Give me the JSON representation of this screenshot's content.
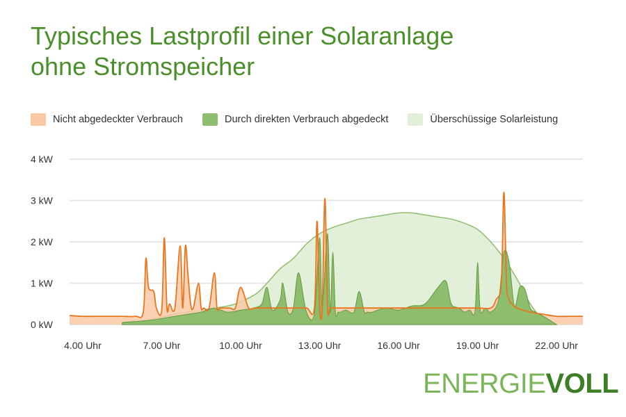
{
  "title": {
    "line1": "Typisches Lastprofil einer Solaranlage",
    "line2": "ohne Stromspeicher"
  },
  "legend": [
    {
      "label": "Nicht abgedeckter Verbrauch",
      "color": "#f9c9a6"
    },
    {
      "label": "Durch direkten Verbrauch abgedeckt",
      "color": "#8ebd6e"
    },
    {
      "label": "Überschüssige Solarleistung",
      "color": "#e2efd9"
    }
  ],
  "logo": {
    "part1": "ENERGIE",
    "part2": "VOLL"
  },
  "colors": {
    "consumption_line": "#e8761e",
    "consumption_fill": "#f9c9a6",
    "direct_fill": "#8ebd6e",
    "solar_fill": "#e2efd9",
    "solar_line": "#8ebd6e",
    "title": "#4a8f2a"
  },
  "chart_data": {
    "type": "area",
    "title": "Typisches Lastprofil einer Solaranlage ohne Stromspeicher",
    "xlim": [
      3.5,
      23
    ],
    "ylim": [
      0,
      4
    ],
    "x_ticks": [
      {
        "value": 4,
        "label": "4.00 Uhr"
      },
      {
        "value": 7,
        "label": "7.00 Uhr"
      },
      {
        "value": 10,
        "label": "10.00 Uhr"
      },
      {
        "value": 13,
        "label": "13.00 Uhr"
      },
      {
        "value": 16,
        "label": "16.00 Uhr"
      },
      {
        "value": 19,
        "label": "19.00 Uhr"
      },
      {
        "value": 22,
        "label": "22.00 Uhr"
      }
    ],
    "y_ticks": [
      {
        "value": 0,
        "label": "0 kW"
      },
      {
        "value": 1,
        "label": "1 kW"
      },
      {
        "value": 2,
        "label": "2 kW"
      },
      {
        "value": 3,
        "label": "3 kW"
      },
      {
        "value": 4,
        "label": "4 kW"
      }
    ],
    "grid": true,
    "legend_position": "top",
    "series": [
      {
        "name": "Überschüssige Solarleistung",
        "x": [
          5.5,
          6.5,
          7.5,
          8.5,
          9.5,
          10.0,
          10.6,
          11.0,
          11.5,
          12.0,
          12.5,
          13.0,
          13.5,
          14.0,
          14.5,
          15.0,
          15.5,
          16.0,
          16.5,
          17.0,
          17.5,
          18.0,
          18.5,
          19.0,
          19.5,
          20.0,
          20.5,
          21.0,
          21.5,
          22.0
        ],
        "y": [
          0.05,
          0.12,
          0.25,
          0.35,
          0.45,
          0.55,
          0.75,
          1.0,
          1.35,
          1.6,
          1.95,
          2.2,
          2.35,
          2.45,
          2.55,
          2.6,
          2.65,
          2.7,
          2.7,
          2.65,
          2.6,
          2.55,
          2.45,
          2.3,
          2.0,
          1.6,
          1.1,
          0.5,
          0.12,
          0.0
        ]
      },
      {
        "name": "Durch direkten Verbrauch abgedeckt",
        "x": [
          5.5,
          6.5,
          7.5,
          8.0,
          8.5,
          9.0,
          9.5,
          10.0,
          10.5,
          10.8,
          11.0,
          11.2,
          11.5,
          11.6,
          11.8,
          12.0,
          12.2,
          12.5,
          12.8,
          13.0,
          13.1,
          13.3,
          13.4,
          13.5,
          13.6,
          13.7,
          13.8,
          14.0,
          14.3,
          14.5,
          14.7,
          14.8,
          15.0,
          15.5,
          16.0,
          16.5,
          17.0,
          17.5,
          17.8,
          18.0,
          18.3,
          18.5,
          18.7,
          18.9,
          19.0,
          19.1,
          19.3,
          19.5,
          19.8,
          20.0,
          20.2,
          20.4,
          20.6,
          20.8,
          21.0,
          21.2,
          21.5,
          22.0
        ],
        "y": [
          0.05,
          0.1,
          0.2,
          0.25,
          0.3,
          0.4,
          0.3,
          0.35,
          0.4,
          0.5,
          0.9,
          0.35,
          0.6,
          1.0,
          0.3,
          0.4,
          1.25,
          0.3,
          0.25,
          2.1,
          0.4,
          2.2,
          0.3,
          1.75,
          0.3,
          0.3,
          0.3,
          0.35,
          0.3,
          0.8,
          0.3,
          0.3,
          0.3,
          0.4,
          0.35,
          0.45,
          0.5,
          0.9,
          1.05,
          0.5,
          0.4,
          0.3,
          0.35,
          0.3,
          1.5,
          0.35,
          0.4,
          0.3,
          0.6,
          1.75,
          1.5,
          0.45,
          0.9,
          0.85,
          0.4,
          0.3,
          0.2,
          0.0
        ]
      },
      {
        "name": "Nicht abgedeckter Verbrauch",
        "x": [
          3.5,
          4.0,
          5.0,
          5.5,
          6.0,
          6.3,
          6.4,
          6.5,
          6.7,
          6.8,
          7.0,
          7.1,
          7.2,
          7.3,
          7.5,
          7.7,
          7.8,
          7.9,
          8.0,
          8.1,
          8.2,
          8.4,
          8.5,
          8.6,
          8.8,
          9.0,
          9.1,
          9.2,
          9.4,
          9.6,
          9.8,
          10.0,
          10.3,
          10.5,
          10.7,
          11.0,
          11.5,
          12.0,
          12.5,
          12.8,
          12.9,
          13.0,
          13.1,
          13.2,
          13.3,
          13.4,
          13.5,
          14.0,
          15.0,
          16.0,
          17.0,
          18.0,
          19.0,
          19.5,
          19.7,
          19.9,
          20.0,
          20.1,
          20.2,
          20.3,
          20.5,
          21.0,
          21.5,
          22.0,
          22.5,
          23.0
        ],
        "y": [
          0.22,
          0.2,
          0.2,
          0.2,
          0.2,
          0.3,
          1.6,
          0.9,
          0.8,
          0.4,
          0.35,
          2.1,
          0.4,
          0.5,
          0.4,
          1.9,
          0.4,
          1.9,
          1.2,
          0.5,
          0.4,
          1.0,
          0.4,
          0.4,
          0.4,
          1.25,
          0.4,
          0.4,
          0.4,
          0.4,
          0.4,
          0.9,
          0.4,
          0.4,
          0.4,
          0.4,
          0.4,
          0.4,
          0.4,
          0.4,
          2.5,
          0.4,
          0.4,
          3.05,
          0.4,
          0.4,
          0.4,
          0.4,
          0.4,
          0.4,
          0.4,
          0.4,
          0.4,
          0.4,
          0.6,
          1.0,
          3.2,
          1.0,
          0.6,
          0.5,
          0.4,
          0.3,
          0.25,
          0.2,
          0.2,
          0.2
        ]
      }
    ]
  }
}
